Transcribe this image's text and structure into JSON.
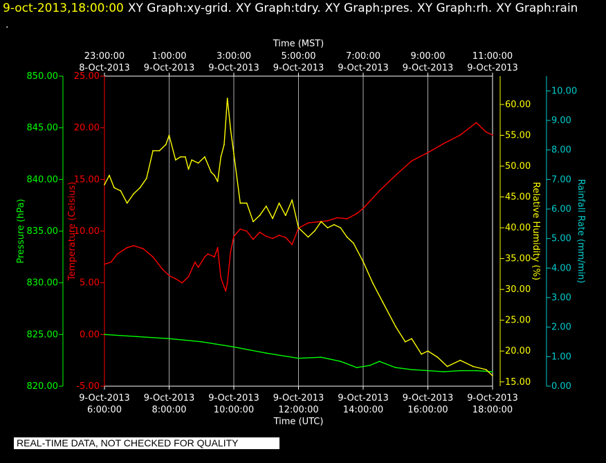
{
  "header": {
    "timestamp": "9-oct-2013,18:00:00",
    "titles": [
      "XY Graph:xy-grid.",
      "XY Graph:tdry.",
      "XY Graph:pres.",
      "XY Graph:rh.",
      "XY Graph:rain"
    ],
    "dot": "."
  },
  "quality_note": "REAL-TIME DATA, NOT CHECKED FOR QUALITY",
  "colors": {
    "pressure": "#00ff00",
    "temperature": "#ff0000",
    "humidity": "#ffff00",
    "rain": "#00cccc",
    "grid": "#ffffff",
    "background": "#000000"
  },
  "chart_data": {
    "type": "line",
    "grid": true,
    "x_axis_bottom": {
      "label": "Time (UTC)",
      "ticks": [
        {
          "date": "9-Oct-2013",
          "time": "6:00:00"
        },
        {
          "date": "9-Oct-2013",
          "time": "8:00:00"
        },
        {
          "date": "9-Oct-2013",
          "time": "10:00:00"
        },
        {
          "date": "9-Oct-2013",
          "time": "12:00:00"
        },
        {
          "date": "9-Oct-2013",
          "time": "14:00:00"
        },
        {
          "date": "9-Oct-2013",
          "time": "16:00:00"
        },
        {
          "date": "9-Oct-2013",
          "time": "18:00:00"
        }
      ]
    },
    "x_axis_top": {
      "label": "Time (MST)",
      "ticks": [
        {
          "time": "23:00:00",
          "date": "8-Oct-2013"
        },
        {
          "time": "1:00:00",
          "date": "9-Oct-2013"
        },
        {
          "time": "3:00:00",
          "date": "9-Oct-2013"
        },
        {
          "time": "5:00:00",
          "date": "9-Oct-2013"
        },
        {
          "time": "7:00:00",
          "date": "9-Oct-2013"
        },
        {
          "time": "9:00:00",
          "date": "9-Oct-2013"
        },
        {
          "time": "11:00:00",
          "date": "9-Oct-2013"
        }
      ]
    },
    "xlim": [
      6.0,
      18.0
    ],
    "axes": {
      "pressure": {
        "label": "Pressure (hPa)",
        "ylim": [
          820,
          850
        ],
        "ticks": [
          "850.00",
          "845.00",
          "840.00",
          "835.00",
          "830.00",
          "825.00",
          "820.00"
        ]
      },
      "temperature": {
        "label": "Temperature (Celsius)",
        "ylim": [
          -5,
          25
        ],
        "ticks": [
          "25.00",
          "20.00",
          "15.00",
          "10.00",
          "5.00",
          "0.00",
          "-5.00"
        ]
      },
      "humidity": {
        "label": "Relative Humidity (%)",
        "ylim": [
          14.3,
          64.6
        ],
        "ticks": [
          "60.00",
          "55.00",
          "50.00",
          "45.00",
          "40.00",
          "35.00",
          "30.00",
          "25.00",
          "20.00",
          "15.00"
        ]
      },
      "rain": {
        "label": "Rainfall Rate (mm/min)",
        "ylim": [
          0,
          10.5
        ],
        "ticks": [
          "10.00",
          "9.00",
          "8.00",
          "7.00",
          "6.00",
          "5.00",
          "4.00",
          "3.00",
          "2.00",
          "1.00",
          "0.00"
        ]
      }
    },
    "series": [
      {
        "name": "pres",
        "axis": "pressure",
        "x": [
          6.0,
          7.0,
          8.0,
          9.0,
          10.0,
          11.0,
          12.0,
          12.7,
          13.3,
          13.8,
          14.2,
          14.5,
          15.0,
          15.5,
          16.0,
          16.5,
          17.0,
          17.5,
          18.0
        ],
        "y": [
          825.0,
          824.8,
          824.6,
          824.3,
          823.8,
          823.2,
          822.7,
          822.8,
          822.4,
          821.8,
          822.0,
          822.4,
          821.8,
          821.6,
          821.5,
          821.4,
          821.5,
          821.5,
          821.4
        ]
      },
      {
        "name": "tdry",
        "axis": "temperature",
        "x": [
          6.0,
          6.2,
          6.4,
          6.7,
          6.9,
          7.2,
          7.5,
          7.8,
          8.0,
          8.2,
          8.4,
          8.6,
          8.8,
          8.9,
          9.1,
          9.2,
          9.4,
          9.5,
          9.6,
          9.7,
          9.75,
          9.8,
          9.9,
          10.0,
          10.2,
          10.4,
          10.6,
          10.8,
          11.0,
          11.2,
          11.4,
          11.6,
          11.8,
          12.0,
          12.3,
          12.6,
          12.9,
          13.2,
          13.5,
          13.8,
          14.0,
          14.5,
          15.0,
          15.5,
          16.0,
          16.5,
          17.0,
          17.5,
          17.8,
          18.0
        ],
        "y": [
          6.8,
          7.0,
          7.8,
          8.4,
          8.6,
          8.3,
          7.5,
          6.3,
          5.7,
          5.4,
          5.0,
          5.6,
          7.0,
          6.5,
          7.5,
          7.8,
          7.5,
          8.4,
          5.5,
          4.6,
          4.2,
          5.0,
          8.0,
          9.5,
          10.2,
          10.0,
          9.2,
          9.9,
          9.5,
          9.3,
          9.6,
          9.4,
          8.7,
          10.3,
          10.8,
          10.9,
          11.0,
          11.3,
          11.2,
          11.7,
          12.2,
          13.9,
          15.4,
          16.8,
          17.6,
          18.5,
          19.3,
          20.5,
          19.6,
          19.3
        ]
      },
      {
        "name": "rh",
        "axis": "humidity",
        "x": [
          6.0,
          6.15,
          6.3,
          6.5,
          6.7,
          6.9,
          7.1,
          7.3,
          7.5,
          7.7,
          7.9,
          8.0,
          8.2,
          8.35,
          8.5,
          8.6,
          8.7,
          8.9,
          9.1,
          9.3,
          9.4,
          9.5,
          9.6,
          9.7,
          9.8,
          9.9,
          10.0,
          10.2,
          10.4,
          10.6,
          10.8,
          11.0,
          11.2,
          11.4,
          11.6,
          11.8,
          12.0,
          12.3,
          12.5,
          12.7,
          12.9,
          13.1,
          13.3,
          13.5,
          13.7,
          14.0,
          14.3,
          14.6,
          15.0,
          15.3,
          15.5,
          15.8,
          16.0,
          16.3,
          16.6,
          17.0,
          17.4,
          17.8,
          18.0
        ],
        "y": [
          47.0,
          48.5,
          46.5,
          46.0,
          44.0,
          45.5,
          46.5,
          48.0,
          52.5,
          52.5,
          53.5,
          55.0,
          51.0,
          51.5,
          51.5,
          49.5,
          51.0,
          50.5,
          51.5,
          49.0,
          48.5,
          47.5,
          51.5,
          53.5,
          61.0,
          56.0,
          52.0,
          44.0,
          44.0,
          41.0,
          42.0,
          43.5,
          41.5,
          44.0,
          42.0,
          44.5,
          40.0,
          38.5,
          39.5,
          41.0,
          40.0,
          40.5,
          40.0,
          38.5,
          37.5,
          34.5,
          31.0,
          28.0,
          24.0,
          21.5,
          22.0,
          19.5,
          20.0,
          19.0,
          17.5,
          18.5,
          17.5,
          17.0,
          16.0
        ]
      }
    ]
  }
}
